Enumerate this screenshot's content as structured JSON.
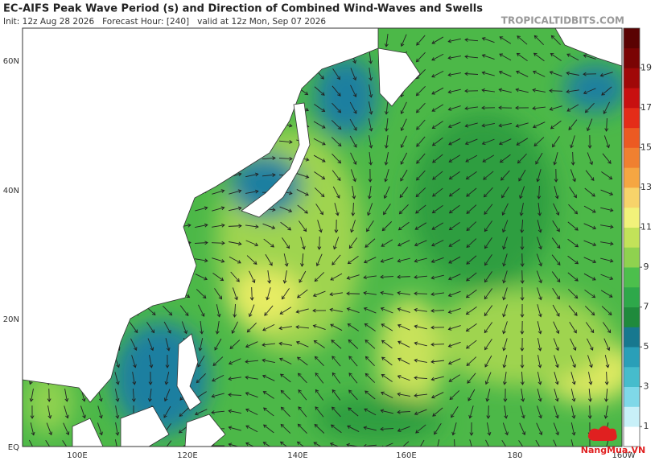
{
  "header": {
    "title": "EC-AIFS Peak Wave Period (s) and Direction of Combined Wind-Waves and Swells",
    "subtitle": "Init: 12z Aug 28 2026   Forecast Hour: [240]   valid at 12z Mon, Sep 07 2026",
    "source": "TROPICALTIDBITS.COM"
  },
  "map": {
    "lat_labels": [
      "60N",
      "40N",
      "20N",
      "EQ"
    ],
    "lon_labels": [
      "100E",
      "120E",
      "140E",
      "160E",
      "180",
      "160W"
    ]
  },
  "colorbar": {
    "range": [
      0,
      21
    ],
    "ticks": [
      1,
      3,
      5,
      7,
      9,
      11,
      13,
      15,
      17,
      19
    ],
    "colors": [
      "#ffffff",
      "#c8f0f8",
      "#7fd8e8",
      "#46bccc",
      "#2a9fb8",
      "#17788f",
      "#1f8a3c",
      "#2ea84a",
      "#4cbf4c",
      "#8fd24f",
      "#c2e259",
      "#f2f27a",
      "#f7d36a",
      "#f5a642",
      "#f08030",
      "#ec5a22",
      "#e42c18",
      "#c81010",
      "#a00808",
      "#7a0404",
      "#5a0202"
    ]
  },
  "logo": "NangMua.VN"
}
